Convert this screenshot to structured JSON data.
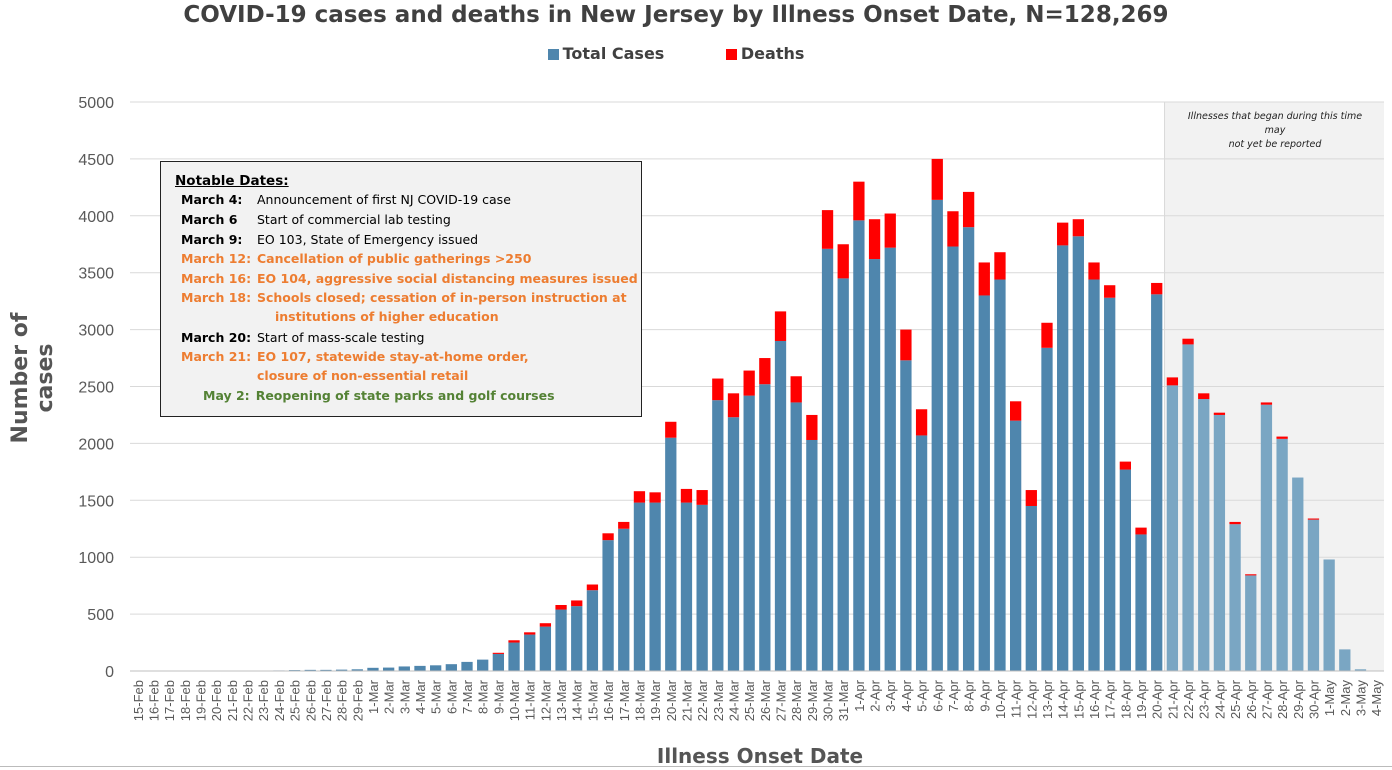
{
  "chart_data": {
    "type": "bar",
    "stacked": true,
    "title": "COVID-19 cases and deaths in New Jersey by Illness Onset Date, N=128,269",
    "xlabel": "Illness Onset Date",
    "ylabel": "Number of cases",
    "ylim": [
      0,
      5000
    ],
    "yticks": [
      "0",
      "500",
      "1000",
      "1500",
      "2000",
      "2500",
      "3000",
      "3500",
      "4000",
      "4500",
      "5000"
    ],
    "grid": true,
    "legend_position": "top",
    "categories": [
      "15-Feb",
      "16-Feb",
      "17-Feb",
      "18-Feb",
      "19-Feb",
      "20-Feb",
      "21-Feb",
      "22-Feb",
      "23-Feb",
      "24-Feb",
      "25-Feb",
      "26-Feb",
      "27-Feb",
      "28-Feb",
      "29-Feb",
      "1-Mar",
      "2-Mar",
      "3-Mar",
      "4-Mar",
      "5-Mar",
      "6-Mar",
      "7-Mar",
      "8-Mar",
      "9-Mar",
      "10-Mar",
      "11-Mar",
      "12-Mar",
      "13-Mar",
      "14-Mar",
      "15-Mar",
      "16-Mar",
      "17-Mar",
      "18-Mar",
      "19-Mar",
      "20-Mar",
      "21-Mar",
      "22-Mar",
      "23-Mar",
      "24-Mar",
      "25-Mar",
      "26-Mar",
      "27-Mar",
      "28-Mar",
      "29-Mar",
      "30-Mar",
      "31-Mar",
      "1-Apr",
      "2-Apr",
      "3-Apr",
      "4-Apr",
      "5-Apr",
      "6-Apr",
      "7-Apr",
      "8-Apr",
      "9-Apr",
      "10-Apr",
      "11-Apr",
      "12-Apr",
      "13-Apr",
      "14-Apr",
      "15-Apr",
      "16-Apr",
      "17-Apr",
      "18-Apr",
      "19-Apr",
      "20-Apr",
      "21-Apr",
      "22-Apr",
      "23-Apr",
      "24-Apr",
      "25-Apr",
      "26-Apr",
      "27-Apr",
      "28-Apr",
      "29-Apr",
      "30-Apr",
      "1-May",
      "2-May",
      "3-May",
      "4-May"
    ],
    "series": [
      {
        "name": "Total Cases",
        "color": "#4f86ad",
        "color_shaded": "#7aa6c3",
        "values": [
          2,
          2,
          2,
          2,
          2,
          2,
          3,
          3,
          4,
          5,
          8,
          10,
          10,
          12,
          15,
          28,
          30,
          40,
          45,
          50,
          60,
          80,
          100,
          150,
          250,
          320,
          390,
          540,
          570,
          710,
          1150,
          1250,
          1480,
          1480,
          2050,
          1480,
          1460,
          2380,
          2230,
          2420,
          2520,
          2900,
          2360,
          2030,
          3710,
          3450,
          3960,
          3620,
          3720,
          2730,
          2070,
          4140,
          3730,
          3900,
          3300,
          3440,
          2200,
          1450,
          2840,
          3740,
          3820,
          3440,
          3280,
          1770,
          1200,
          3310,
          2510,
          2870,
          2390,
          2250,
          1290,
          840,
          2340,
          2040,
          1700,
          1330,
          980,
          190,
          15,
          2
        ]
      },
      {
        "name": "Deaths",
        "color": "#ff0000",
        "values": [
          0,
          0,
          0,
          0,
          0,
          0,
          0,
          0,
          0,
          0,
          0,
          0,
          0,
          0,
          0,
          0,
          0,
          0,
          0,
          0,
          0,
          0,
          0,
          10,
          20,
          20,
          30,
          40,
          50,
          50,
          60,
          60,
          100,
          90,
          140,
          120,
          130,
          190,
          210,
          220,
          230,
          260,
          230,
          220,
          340,
          300,
          340,
          350,
          300,
          270,
          230,
          360,
          310,
          310,
          290,
          240,
          170,
          140,
          220,
          200,
          150,
          150,
          110,
          70,
          60,
          100,
          70,
          50,
          50,
          20,
          20,
          10,
          20,
          20,
          0,
          10,
          0,
          0,
          0,
          0
        ]
      }
    ],
    "shaded_region_start": "21-Apr",
    "shaded_region_note": [
      "Illnesses that began during this time",
      "may",
      "not yet be reported"
    ]
  },
  "notable_dates": {
    "heading": "Notable Dates:",
    "items": [
      {
        "date": "March 4:",
        "text": "Announcement of first NJ COVID-19 case",
        "color": "black"
      },
      {
        "date": "March 6",
        "text": "Start of commercial lab testing",
        "color": "black"
      },
      {
        "date": "March 9:",
        "text": "EO 103, State of Emergency issued",
        "color": "black"
      },
      {
        "date": "March 12:",
        "text": "Cancellation of public gatherings >250",
        "color": "orange"
      },
      {
        "date": "March 16:",
        "text": "EO 104, aggressive social distancing measures issued",
        "color": "orange"
      },
      {
        "date": "March 18:",
        "text": "Schools closed; cessation of in-person instruction at",
        "text2": "institutions of higher education",
        "color": "orange"
      },
      {
        "date": "March 20:",
        "text": "Start of mass-scale testing",
        "color": "black"
      },
      {
        "date": "March 21:",
        "text": "EO 107, statewide stay-at-home order,",
        "text2": "closure of non-essential retail",
        "color": "orange"
      },
      {
        "date": "May 2:",
        "text": "Reopening of state parks and golf courses",
        "color": "green"
      }
    ]
  }
}
